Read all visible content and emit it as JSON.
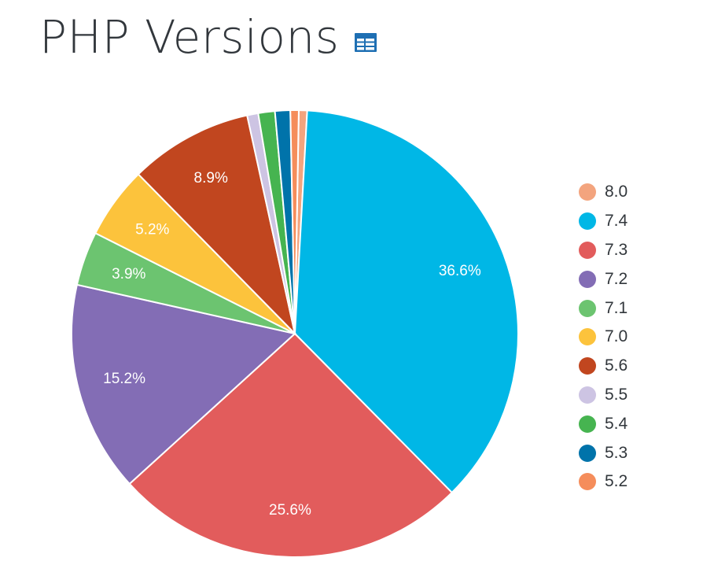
{
  "header": {
    "title": "PHP Versions"
  },
  "icons": {
    "table_toggle": "table-icon",
    "table_toggle_color": "#1e6fb3"
  },
  "chart_data": {
    "type": "pie",
    "title": "PHP Versions",
    "legend_position": "right",
    "start_angle_deg": 1,
    "series": [
      {
        "name": "8.0",
        "value": 0.6,
        "color": "#f3a47e",
        "label": ""
      },
      {
        "name": "7.4",
        "value": 36.6,
        "color": "#00b7e6",
        "label": "36.6%"
      },
      {
        "name": "7.3",
        "value": 25.6,
        "color": "#e25c5c",
        "label": "25.6%"
      },
      {
        "name": "7.2",
        "value": 15.2,
        "color": "#836db5",
        "label": "15.2%"
      },
      {
        "name": "7.1",
        "value": 3.9,
        "color": "#6cc470",
        "label": "3.9%"
      },
      {
        "name": "7.0",
        "value": 5.2,
        "color": "#fcc33c",
        "label": "5.2%"
      },
      {
        "name": "5.6",
        "value": 8.9,
        "color": "#c1461f",
        "label": "8.9%"
      },
      {
        "name": "5.5",
        "value": 0.8,
        "color": "#cdc4e3",
        "label": ""
      },
      {
        "name": "5.4",
        "value": 1.2,
        "color": "#46b450",
        "label": ""
      },
      {
        "name": "5.3",
        "value": 1.1,
        "color": "#0073aa",
        "label": ""
      },
      {
        "name": "5.2",
        "value": 0.6,
        "color": "#f58d5b",
        "label": ""
      }
    ]
  }
}
